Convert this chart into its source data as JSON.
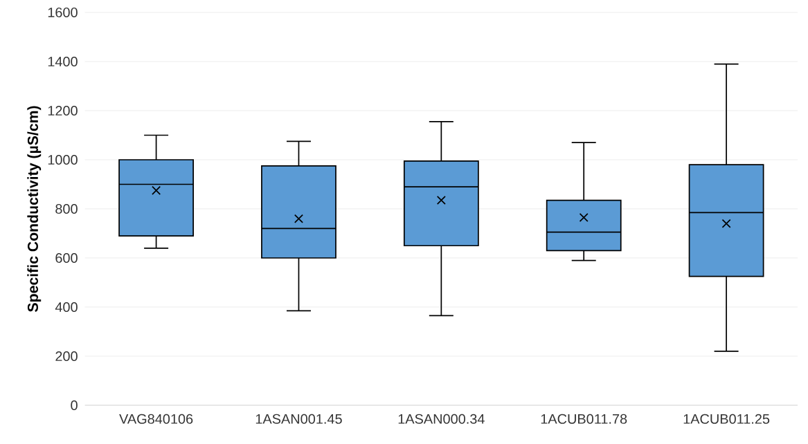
{
  "chart_data": {
    "type": "box",
    "ylabel": "Specific Conductivity (µS/cm)",
    "categories": [
      "VAG840106",
      "1ASAN001.45",
      "1ASAN000.34",
      "1ACUB011.78",
      "1ACUB011.25"
    ],
    "boxes": [
      {
        "low": 640,
        "q1": 690,
        "median": 900,
        "q3": 1000,
        "high": 1100,
        "mean": 875
      },
      {
        "low": 385,
        "q1": 600,
        "median": 720,
        "q3": 975,
        "high": 1075,
        "mean": 760
      },
      {
        "low": 365,
        "q1": 650,
        "median": 890,
        "q3": 995,
        "high": 1155,
        "mean": 835
      },
      {
        "low": 590,
        "q1": 630,
        "median": 705,
        "q3": 835,
        "high": 1070,
        "mean": 765
      },
      {
        "low": 220,
        "q1": 525,
        "median": 785,
        "q3": 980,
        "high": 1390,
        "mean": 740
      }
    ],
    "color": "#5b9bd5",
    "ylim": [
      0,
      1600
    ],
    "yticks": [
      0,
      200,
      400,
      600,
      800,
      1000,
      1200,
      1400,
      1600
    ],
    "grid": "y"
  }
}
